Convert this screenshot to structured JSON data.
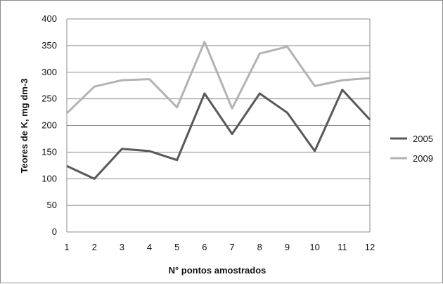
{
  "chart_data": {
    "type": "line",
    "title": "",
    "xlabel": "N° pontos amostrados",
    "ylabel": "Teores de K, mg dm-3",
    "categories": [
      "1",
      "2",
      "3",
      "4",
      "5",
      "6",
      "7",
      "8",
      "9",
      "10",
      "11",
      "12"
    ],
    "ylim": [
      0,
      400
    ],
    "yticks": [
      "0",
      "50",
      "100",
      "150",
      "200",
      "250",
      "300",
      "350",
      "400"
    ],
    "grid": true,
    "legend": "right",
    "series": [
      {
        "name": "2005",
        "color": "#595959",
        "values": [
          124,
          100,
          156,
          152,
          135,
          260,
          184,
          260,
          224,
          152,
          267,
          211
        ]
      },
      {
        "name": "2009",
        "color": "#b3b3b3",
        "values": [
          223,
          273,
          285,
          287,
          234,
          357,
          232,
          335,
          348,
          274,
          285,
          289
        ]
      }
    ]
  }
}
